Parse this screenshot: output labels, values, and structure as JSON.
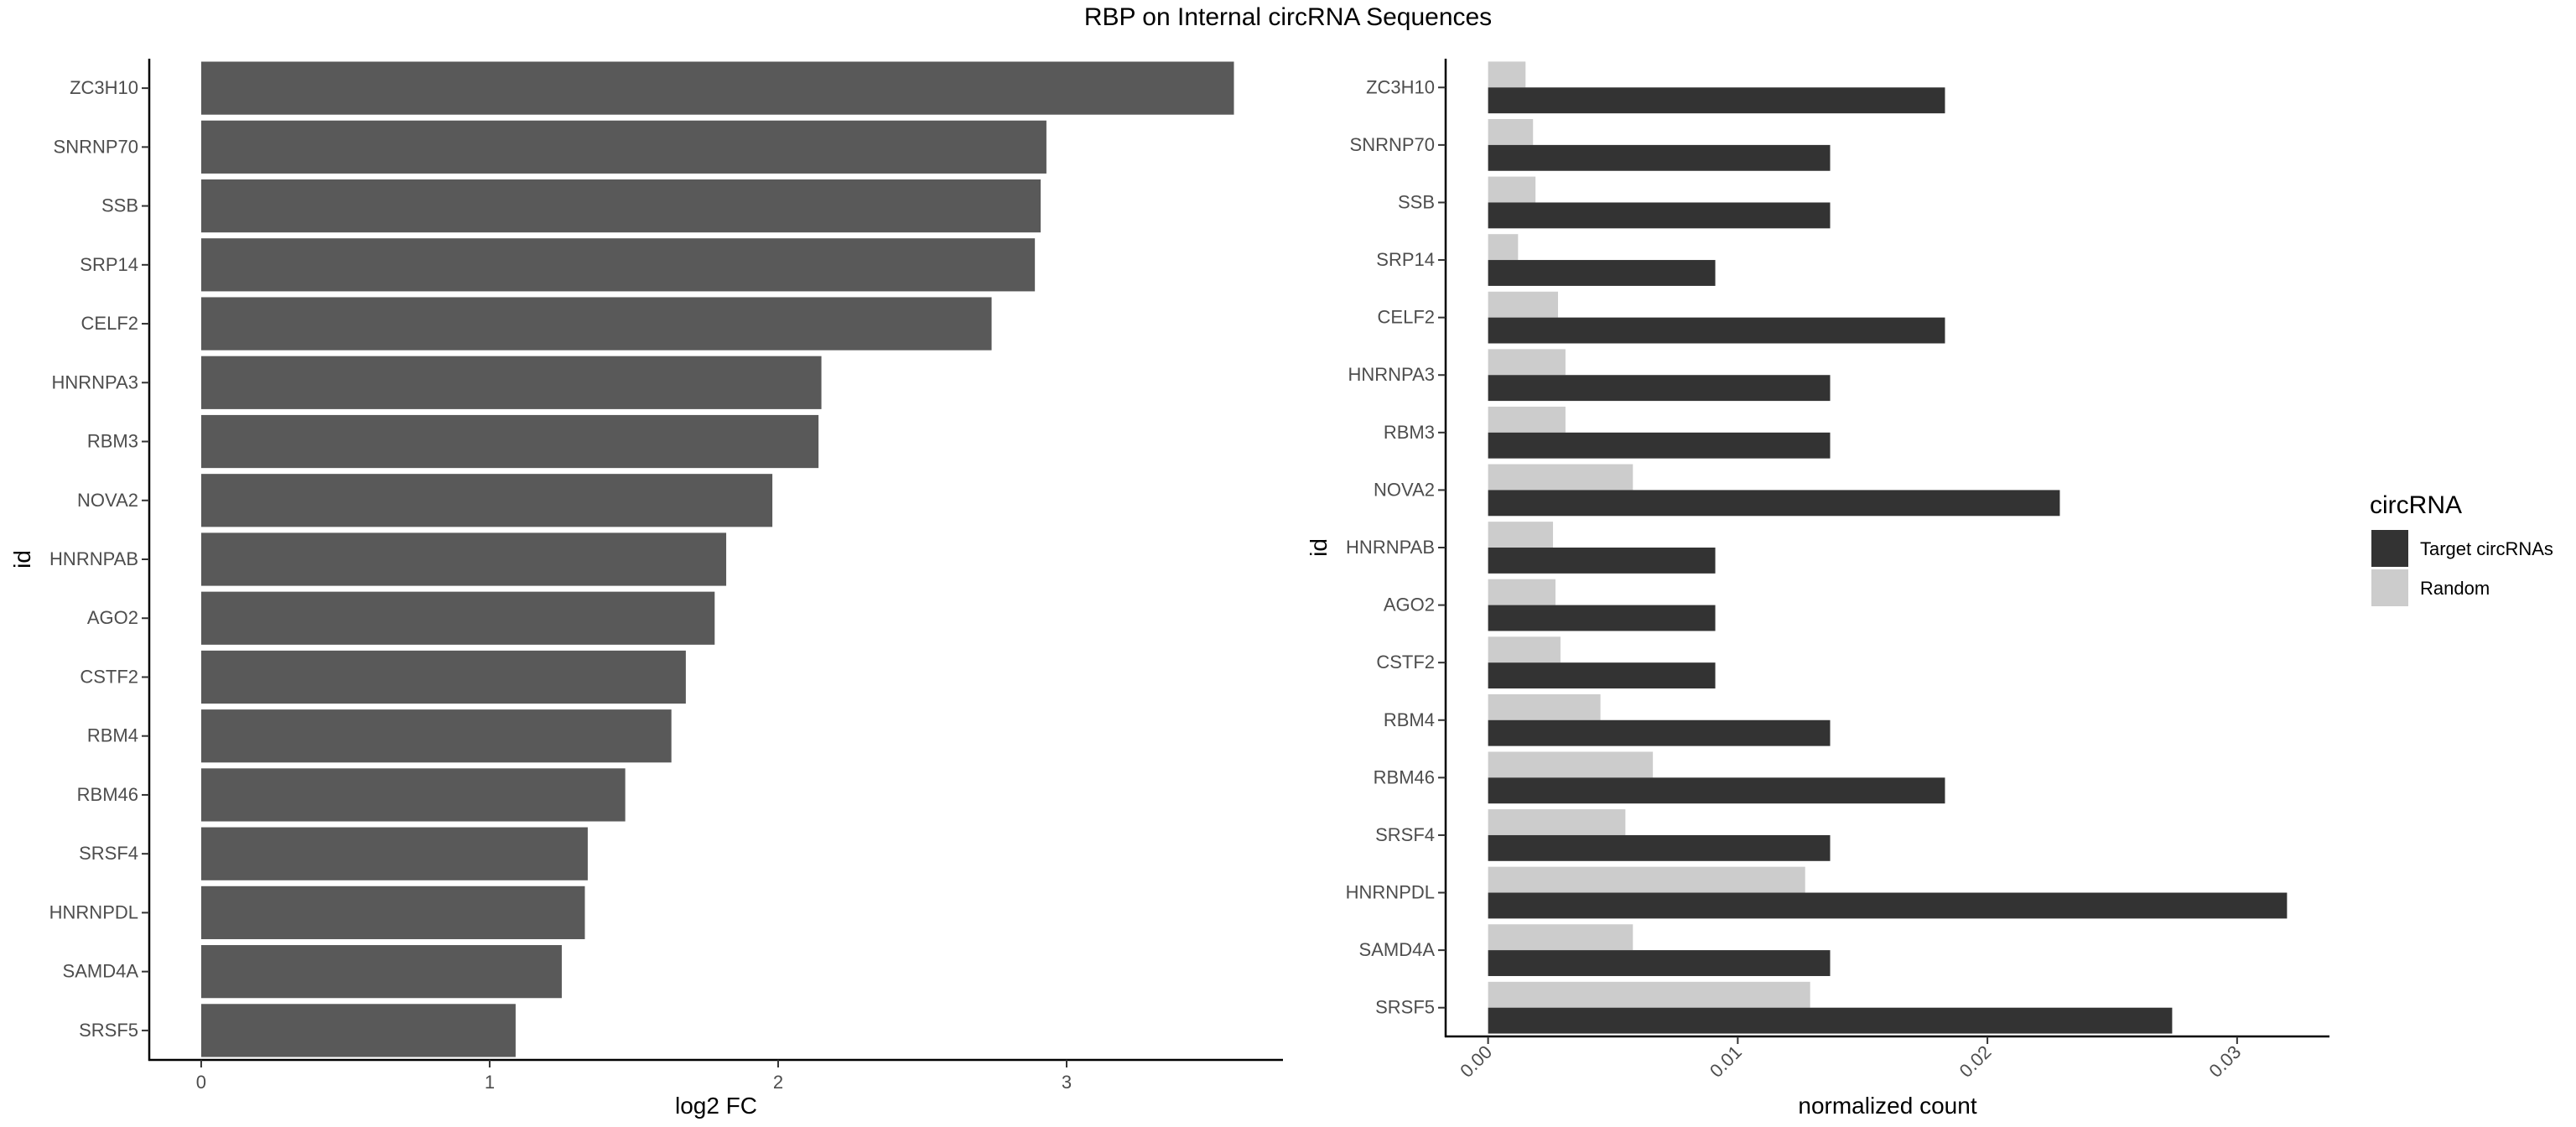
{
  "title": "RBP on Internal circRNA Sequences",
  "colors": {
    "left_bar": "#595959",
    "target": "#333333",
    "random": "#cccccc",
    "axis": "#000000",
    "tick_label": "#4d4d4d"
  },
  "chart_data": [
    {
      "type": "bar",
      "orientation": "horizontal",
      "title": "",
      "xlabel": "log2 FC",
      "ylabel": "id",
      "xlim": [
        -0.18,
        3.75
      ],
      "xticks": [
        0,
        1,
        2,
        3
      ],
      "categories": [
        "ZC3H10",
        "SNRNP70",
        "SSB",
        "SRP14",
        "CELF2",
        "HNRNPA3",
        "RBM3",
        "NOVA2",
        "HNRNPAB",
        "AGO2",
        "CSTF2",
        "RBM4",
        "RBM46",
        "SRSF4",
        "HNRNPDL",
        "SAMD4A",
        "SRSF5"
      ],
      "values": [
        3.58,
        2.93,
        2.91,
        2.89,
        2.74,
        2.15,
        2.14,
        1.98,
        1.82,
        1.78,
        1.68,
        1.63,
        1.47,
        1.34,
        1.33,
        1.25,
        1.09
      ],
      "grid": false
    },
    {
      "type": "bar",
      "orientation": "horizontal",
      "title": "",
      "xlabel": "normalized count",
      "ylabel": "id",
      "xlim": [
        -0.0017,
        0.0337
      ],
      "xticks": [
        "0.00",
        "0.01",
        "0.02",
        "0.03"
      ],
      "categories": [
        "ZC3H10",
        "SNRNP70",
        "SSB",
        "SRP14",
        "CELF2",
        "HNRNPA3",
        "RBM3",
        "NOVA2",
        "HNRNPAB",
        "AGO2",
        "CSTF2",
        "RBM4",
        "RBM46",
        "SRSF4",
        "HNRNPDL",
        "SAMD4A",
        "SRSF5"
      ],
      "series": [
        {
          "name": "Target circRNAs",
          "values": [
            0.0183,
            0.0137,
            0.0137,
            0.0091,
            0.0183,
            0.0137,
            0.0137,
            0.0229,
            0.0091,
            0.0091,
            0.0091,
            0.0137,
            0.0183,
            0.0137,
            0.032,
            0.0137,
            0.0274
          ]
        },
        {
          "name": "Random",
          "values": [
            0.0015,
            0.0018,
            0.0019,
            0.0012,
            0.0028,
            0.0031,
            0.0031,
            0.0058,
            0.0026,
            0.0027,
            0.0029,
            0.0045,
            0.0066,
            0.0055,
            0.0127,
            0.0058,
            0.0129
          ]
        }
      ],
      "legend": {
        "title": "circRNA",
        "position": "right"
      },
      "grid": false
    }
  ]
}
